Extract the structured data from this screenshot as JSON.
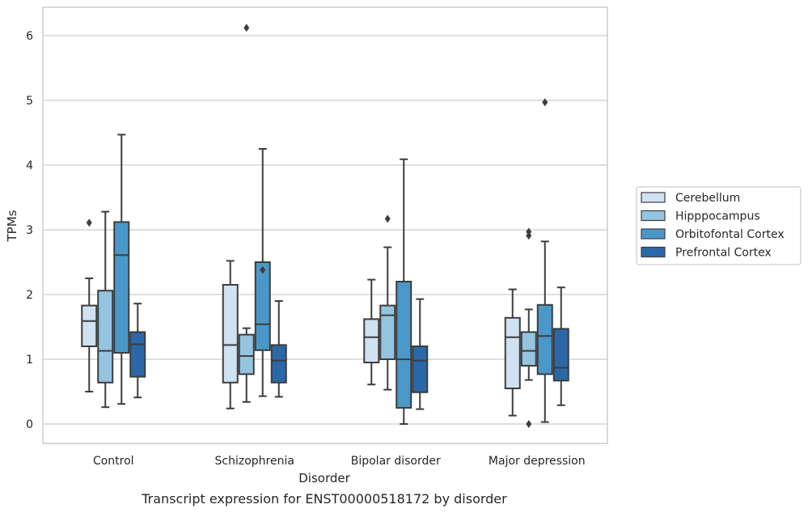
{
  "chart_data": {
    "type": "boxplot",
    "xlabel": "Disorder",
    "ylabel": "TPMs",
    "caption": "Transcript expression for ENST00000518172 by disorder",
    "ylim": [
      -0.3,
      6.45
    ],
    "yticks": [
      0,
      1,
      2,
      3,
      4,
      5,
      6
    ],
    "grid": "horizontal",
    "legend_position": "right",
    "categories": [
      "Control",
      "Schizophrenia",
      "Bipolar disorder",
      "Major depression"
    ],
    "series": [
      {
        "name": "Cerebellum",
        "color": "#d0e1f2",
        "boxes": [
          {
            "whisker_low": 0.5,
            "q1": 1.2,
            "median": 1.59,
            "q3": 1.83,
            "whisker_high": 2.25,
            "outliers": [
              3.11
            ]
          },
          {
            "whisker_low": 0.24,
            "q1": 0.64,
            "median": 1.22,
            "q3": 2.15,
            "whisker_high": 2.52,
            "outliers": []
          },
          {
            "whisker_low": 0.61,
            "q1": 0.95,
            "median": 1.34,
            "q3": 1.62,
            "whisker_high": 2.23,
            "outliers": []
          },
          {
            "whisker_low": 0.13,
            "q1": 0.55,
            "median": 1.34,
            "q3": 1.64,
            "whisker_high": 2.08,
            "outliers": []
          }
        ]
      },
      {
        "name": "Hipppocampus",
        "color": "#94c4df",
        "boxes": [
          {
            "whisker_low": 0.26,
            "q1": 0.64,
            "median": 1.13,
            "q3": 2.06,
            "whisker_high": 3.28,
            "outliers": []
          },
          {
            "whisker_low": 0.34,
            "q1": 0.77,
            "median": 1.05,
            "q3": 1.38,
            "whisker_high": 1.48,
            "outliers": [
              6.12
            ]
          },
          {
            "whisker_low": 0.53,
            "q1": 1.0,
            "median": 1.68,
            "q3": 1.83,
            "whisker_high": 2.73,
            "outliers": [
              3.17
            ]
          },
          {
            "whisker_low": 0.68,
            "q1": 0.9,
            "median": 1.13,
            "q3": 1.42,
            "whisker_high": 1.77,
            "outliers": [
              0.0,
              2.91,
              2.97
            ]
          }
        ]
      },
      {
        "name": "Orbitofontal Cortex",
        "color": "#4a98c9",
        "boxes": [
          {
            "whisker_low": 0.31,
            "q1": 1.1,
            "median": 2.61,
            "q3": 3.12,
            "whisker_high": 4.47,
            "outliers": []
          },
          {
            "whisker_low": 0.43,
            "q1": 1.14,
            "median": 1.54,
            "q3": 2.5,
            "whisker_high": 4.25,
            "outliers": [
              2.38
            ]
          },
          {
            "whisker_low": 0.0,
            "q1": 0.25,
            "median": 1.0,
            "q3": 2.2,
            "whisker_high": 4.09,
            "outliers": []
          },
          {
            "whisker_low": 0.03,
            "q1": 0.77,
            "median": 1.36,
            "q3": 1.84,
            "whisker_high": 2.82,
            "outliers": [
              4.97
            ]
          }
        ]
      },
      {
        "name": "Prefrontal Cortex",
        "color": "#2a68a8",
        "boxes": [
          {
            "whisker_low": 0.41,
            "q1": 0.73,
            "median": 1.23,
            "q3": 1.42,
            "whisker_high": 1.86,
            "outliers": []
          },
          {
            "whisker_low": 0.42,
            "q1": 0.64,
            "median": 0.98,
            "q3": 1.22,
            "whisker_high": 1.9,
            "outliers": []
          },
          {
            "whisker_low": 0.23,
            "q1": 0.49,
            "median": 0.98,
            "q3": 1.2,
            "whisker_high": 1.93,
            "outliers": []
          },
          {
            "whisker_low": 0.29,
            "q1": 0.67,
            "median": 0.87,
            "q3": 1.47,
            "whisker_high": 2.11,
            "outliers": []
          }
        ]
      }
    ]
  }
}
